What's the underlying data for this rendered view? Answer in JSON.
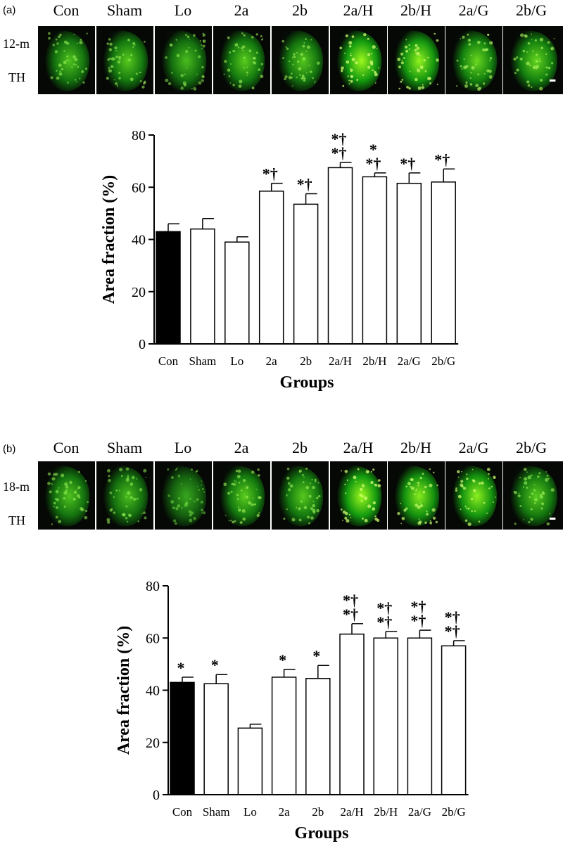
{
  "panels": [
    {
      "label": "(a)",
      "group_headers": [
        "Con",
        "Sham",
        "Lo",
        "2a",
        "2b",
        "2a/H",
        "2b/H",
        "2a/G",
        "2b/G"
      ],
      "row_label_1": "12-m",
      "row_label_2": "TH",
      "tile_brightness": [
        0.55,
        0.6,
        0.5,
        0.62,
        0.58,
        0.95,
        0.9,
        0.7,
        0.68
      ]
    },
    {
      "label": "(b)",
      "group_headers": [
        "Con",
        "Sham",
        "Lo",
        "2a",
        "2b",
        "2a/H",
        "2b/H",
        "2a/G",
        "2b/G"
      ],
      "row_label_1": "18-m",
      "row_label_2": "TH",
      "tile_brightness": [
        0.55,
        0.5,
        0.35,
        0.62,
        0.6,
        0.95,
        0.85,
        0.88,
        0.6
      ]
    }
  ],
  "chart_data": [
    {
      "type": "bar",
      "categories": [
        "Con",
        "Sham",
        "Lo",
        "2a",
        "2b",
        "2a/H",
        "2b/H",
        "2a/G",
        "2b/G"
      ],
      "values": [
        43,
        44,
        39,
        58.5,
        53.5,
        67.5,
        64,
        61.5,
        62
      ],
      "errors": [
        3,
        4,
        2,
        3,
        4,
        2,
        1.5,
        4,
        5
      ],
      "fills": [
        "#000000",
        "#ffffff",
        "#ffffff",
        "#ffffff",
        "#ffffff",
        "#ffffff",
        "#ffffff",
        "#ffffff",
        "#ffffff"
      ],
      "annotations": [
        "",
        "",
        "",
        "*†",
        "*†",
        "*†\n*†",
        "*\n*†",
        "*†",
        "*†"
      ],
      "xlabel": "Groups",
      "ylabel": "Area fraction (%)",
      "ylim": [
        0,
        80
      ],
      "yticks": [
        0,
        20,
        40,
        60,
        80
      ],
      "grid": false
    },
    {
      "type": "bar",
      "categories": [
        "Con",
        "Sham",
        "Lo",
        "2a",
        "2b",
        "2a/H",
        "2b/H",
        "2a/G",
        "2b/G"
      ],
      "values": [
        43,
        42.5,
        25.5,
        45,
        44.5,
        61.5,
        60,
        60,
        57
      ],
      "errors": [
        2,
        3.5,
        1.5,
        3,
        5,
        4,
        2.5,
        3,
        2
      ],
      "fills": [
        "#000000",
        "#ffffff",
        "#ffffff",
        "#ffffff",
        "#ffffff",
        "#ffffff",
        "#ffffff",
        "#ffffff",
        "#ffffff"
      ],
      "annotations": [
        "*",
        "*",
        "",
        "*",
        "*",
        "*†\n*†",
        "*†\n*†",
        "*†\n*†",
        "*†\n*†"
      ],
      "xlabel": "Groups",
      "ylabel": "Area fraction (%)",
      "ylim": [
        0,
        80
      ],
      "yticks": [
        0,
        20,
        40,
        60,
        80
      ],
      "grid": false
    }
  ]
}
